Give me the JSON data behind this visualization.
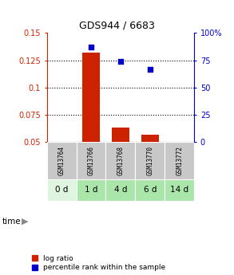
{
  "title": "GDS944 / 6683",
  "samples": [
    "GSM13764",
    "GSM13766",
    "GSM13768",
    "GSM13770",
    "GSM13772"
  ],
  "time_labels": [
    "0 d",
    "1 d",
    "4 d",
    "6 d",
    "14 d"
  ],
  "log_ratio": [
    0.0,
    0.132,
    0.063,
    0.057,
    0.0
  ],
  "percentile_rank": [
    null,
    87.0,
    74.0,
    67.0,
    null
  ],
  "ylim_left": [
    0.05,
    0.15
  ],
  "ylim_right": [
    0,
    100
  ],
  "yticks_left": [
    0.05,
    0.075,
    0.1,
    0.125,
    0.15
  ],
  "ytick_labels_left": [
    "0.05",
    "0.075",
    "0.1",
    "0.125",
    "0.15"
  ],
  "yticks_right": [
    0,
    25,
    50,
    75,
    100
  ],
  "ytick_labels_right": [
    "0",
    "25",
    "50",
    "75",
    "100%"
  ],
  "bar_color": "#cc2200",
  "scatter_color": "#0000cc",
  "bar_baseline": 0.05,
  "bg_color_samples": "#c8c8c8",
  "bg_color_time_0d": "#dff5df",
  "bg_color_time_green": "#aae6aa",
  "time_colors": [
    "#dff5df",
    "#aae6aa",
    "#aae6aa",
    "#aae6aa",
    "#aae6aa"
  ],
  "legend_log_ratio": "log ratio",
  "legend_percentile": "percentile rank within the sample"
}
